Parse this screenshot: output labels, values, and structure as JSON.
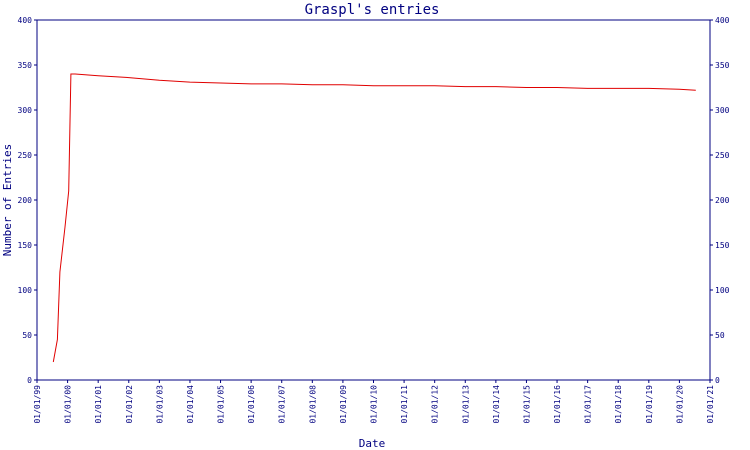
{
  "chart_data": {
    "type": "line",
    "title": "Graspl's entries",
    "xlabel": "Date",
    "ylabel": "Number of Entries",
    "ylim": [
      0,
      400
    ],
    "yticks": [
      0,
      50,
      100,
      150,
      200,
      250,
      300,
      350,
      400
    ],
    "xlim": [
      "1999-01-01",
      "2021-01-01"
    ],
    "xticks": [
      "01/01/99",
      "01/01/00",
      "01/01/01",
      "01/01/02",
      "01/01/03",
      "01/01/04",
      "01/01/05",
      "01/01/06",
      "01/01/07",
      "01/01/08",
      "01/01/09",
      "01/01/10",
      "01/01/11",
      "01/01/12",
      "01/01/13",
      "01/01/14",
      "01/01/15",
      "01/01/16",
      "01/01/17",
      "01/01/18",
      "01/01/19",
      "01/01/20",
      "01/01/21"
    ],
    "grid": false,
    "series": [
      {
        "color": "#e00000",
        "points": [
          [
            "1999-07-15",
            20
          ],
          [
            "1999-09-01",
            45
          ],
          [
            "1999-10-01",
            120
          ],
          [
            "1999-12-01",
            170
          ],
          [
            "2000-01-15",
            210
          ],
          [
            "2000-02-10",
            340
          ],
          [
            "2000-04-01",
            340
          ],
          [
            "2001-01-01",
            338
          ],
          [
            "2002-01-01",
            336
          ],
          [
            "2003-01-01",
            333
          ],
          [
            "2004-01-01",
            331
          ],
          [
            "2005-01-01",
            330
          ],
          [
            "2006-01-01",
            329
          ],
          [
            "2007-01-01",
            329
          ],
          [
            "2008-01-01",
            328
          ],
          [
            "2009-01-01",
            328
          ],
          [
            "2010-01-01",
            327
          ],
          [
            "2011-01-01",
            327
          ],
          [
            "2012-01-01",
            327
          ],
          [
            "2013-01-01",
            326
          ],
          [
            "2014-01-01",
            326
          ],
          [
            "2015-01-01",
            325
          ],
          [
            "2016-01-01",
            325
          ],
          [
            "2017-01-01",
            324
          ],
          [
            "2018-01-01",
            324
          ],
          [
            "2019-01-01",
            324
          ],
          [
            "2020-01-01",
            323
          ],
          [
            "2020-07-15",
            322
          ]
        ]
      }
    ]
  }
}
